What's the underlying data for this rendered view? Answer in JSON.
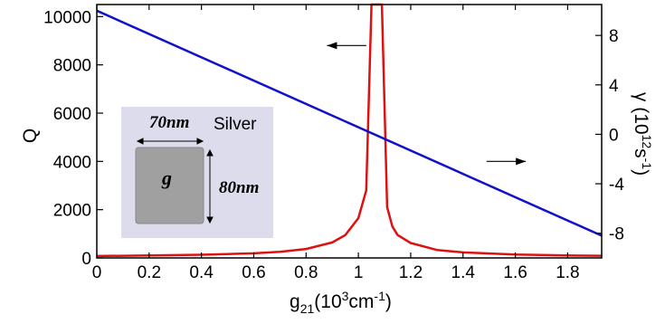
{
  "chart_data": {
    "type": "line",
    "xlabel": {
      "base": "g",
      "sub": "21",
      "pre_sup": "(10",
      "sup": "3",
      "post_sup": "cm",
      "sup2": "-1",
      "close": ")"
    },
    "ylabel_left": "Q",
    "ylabel_right": {
      "pre": "γ (10",
      "sup": "12",
      "mid": "s",
      "sup2": "-1",
      "close": ")"
    },
    "x_ticks": [
      "0",
      "0.2",
      "0.4",
      "0.6",
      "0.8",
      "1",
      "1.2",
      "1.4",
      "1.6",
      "1.8"
    ],
    "x_tick_values": [
      0,
      0.2,
      0.4,
      0.6,
      0.8,
      1.0,
      1.2,
      1.4,
      1.6,
      1.8
    ],
    "xlim": [
      0,
      1.93
    ],
    "y_left_ticks": [
      "0",
      "2000",
      "4000",
      "6000",
      "8000",
      "10000"
    ],
    "y_left_tick_values": [
      0,
      2000,
      4000,
      6000,
      8000,
      10000
    ],
    "ylim_left": [
      0,
      10500
    ],
    "y_right_ticks": [
      "8",
      "4",
      "0",
      "-4",
      "-8"
    ],
    "y_right_tick_values": [
      8,
      4,
      0,
      -4,
      -8
    ],
    "ylim_right": [
      -10,
      10.5
    ],
    "series": [
      {
        "axis": "left",
        "color": "#dd1111",
        "x": [
          0,
          0.2,
          0.4,
          0.6,
          0.7,
          0.8,
          0.9,
          0.95,
          1.0,
          1.03,
          1.05,
          1.06,
          1.07,
          1.08,
          1.09,
          1.11,
          1.13,
          1.15,
          1.2,
          1.3,
          1.4,
          1.6,
          1.8,
          1.93
        ],
        "values": [
          80,
          100,
          130,
          190,
          250,
          370,
          640,
          950,
          1650,
          2800,
          10500,
          10500,
          10500,
          10500,
          10500,
          2100,
          1300,
          950,
          620,
          330,
          230,
          140,
          100,
          90
        ]
      },
      {
        "axis": "right",
        "color": "#1111cc",
        "x": [
          0,
          1.93
        ],
        "values": [
          10,
          -8.2
        ]
      }
    ],
    "annotations": [
      {
        "type": "arrow",
        "direction": "left",
        "x_from": 1.03,
        "x_to": 0.88,
        "y_left": 8800
      },
      {
        "type": "arrow",
        "direction": "right",
        "x_from": 1.49,
        "x_to": 1.64,
        "y_left": 4000
      }
    ],
    "inset": {
      "material_label": "Silver",
      "width_label": "70nm",
      "height_label": "80nm",
      "region_label": "g",
      "background": "#dcdcec",
      "rect_color": "#a0a0a0"
    }
  }
}
